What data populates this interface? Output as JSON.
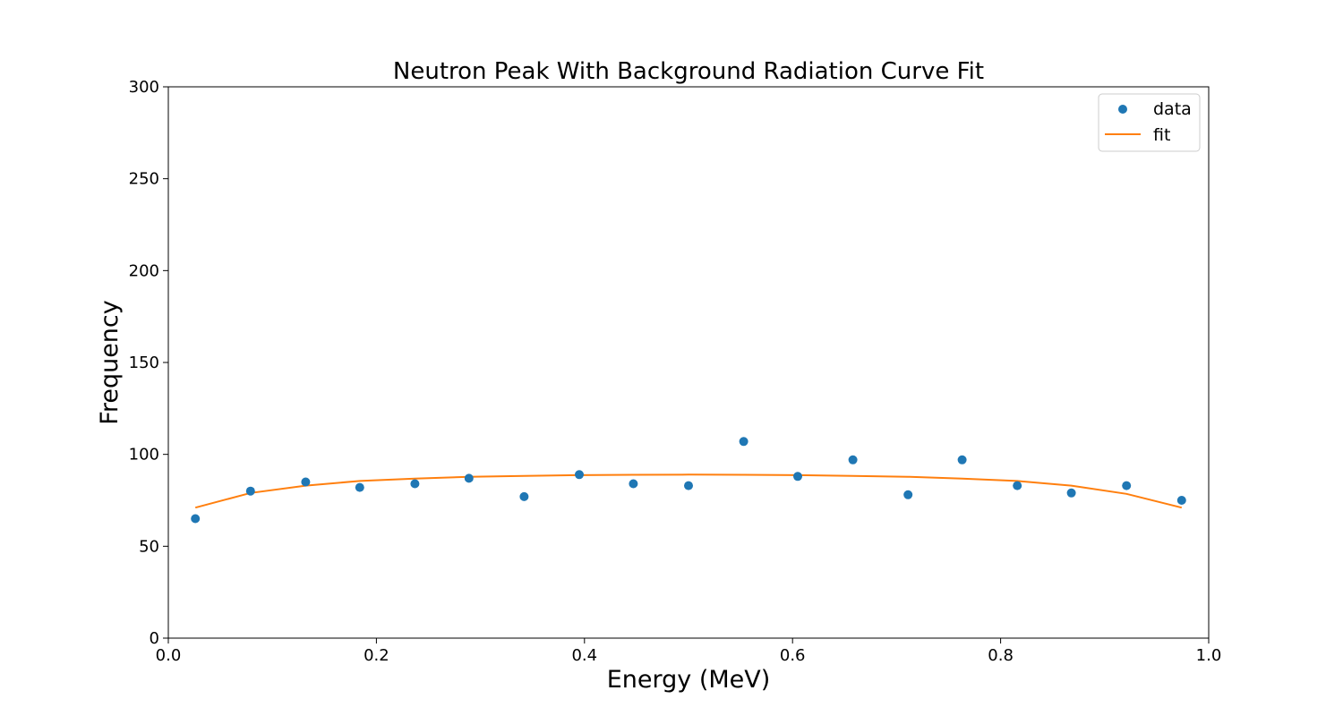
{
  "chart_data": {
    "type": "scatter",
    "title": "Neutron Peak With Background Radiation Curve Fit",
    "xlabel": "Energy (MeV)",
    "ylabel": "Frequency",
    "xlim": [
      0.0,
      1.0
    ],
    "ylim": [
      0,
      300
    ],
    "xticks": [
      0.0,
      0.2,
      0.4,
      0.6,
      0.8,
      1.0
    ],
    "xtick_labels": [
      "0.0",
      "0.2",
      "0.4",
      "0.6",
      "0.8",
      "1.0"
    ],
    "yticks": [
      0,
      50,
      100,
      150,
      200,
      250,
      300
    ],
    "ytick_labels": [
      "0",
      "50",
      "100",
      "150",
      "200",
      "250",
      "300"
    ],
    "grid": false,
    "legend_position": "top-right",
    "series": [
      {
        "name": "data",
        "kind": "scatter",
        "color": "#1f77b4",
        "x": [
          0.026,
          0.079,
          0.132,
          0.184,
          0.237,
          0.289,
          0.342,
          0.395,
          0.447,
          0.5,
          0.553,
          0.605,
          0.658,
          0.711,
          0.763,
          0.816,
          0.868,
          0.921,
          0.974
        ],
        "y": [
          65,
          80,
          85,
          82,
          84,
          87,
          77,
          89,
          84,
          83,
          107,
          88,
          97,
          78,
          97,
          83,
          79,
          83,
          75
        ]
      },
      {
        "name": "fit",
        "kind": "line",
        "color": "#ff7f0e",
        "x": [
          0.026,
          0.079,
          0.132,
          0.184,
          0.237,
          0.289,
          0.342,
          0.395,
          0.447,
          0.5,
          0.553,
          0.605,
          0.658,
          0.711,
          0.763,
          0.816,
          0.868,
          0.921,
          0.974
        ],
        "y": [
          71,
          79,
          83,
          85.5,
          86.8,
          87.8,
          88.3,
          88.7,
          88.9,
          89,
          88.9,
          88.7,
          88.3,
          87.8,
          86.8,
          85.5,
          83,
          78.5,
          71
        ]
      }
    ]
  }
}
